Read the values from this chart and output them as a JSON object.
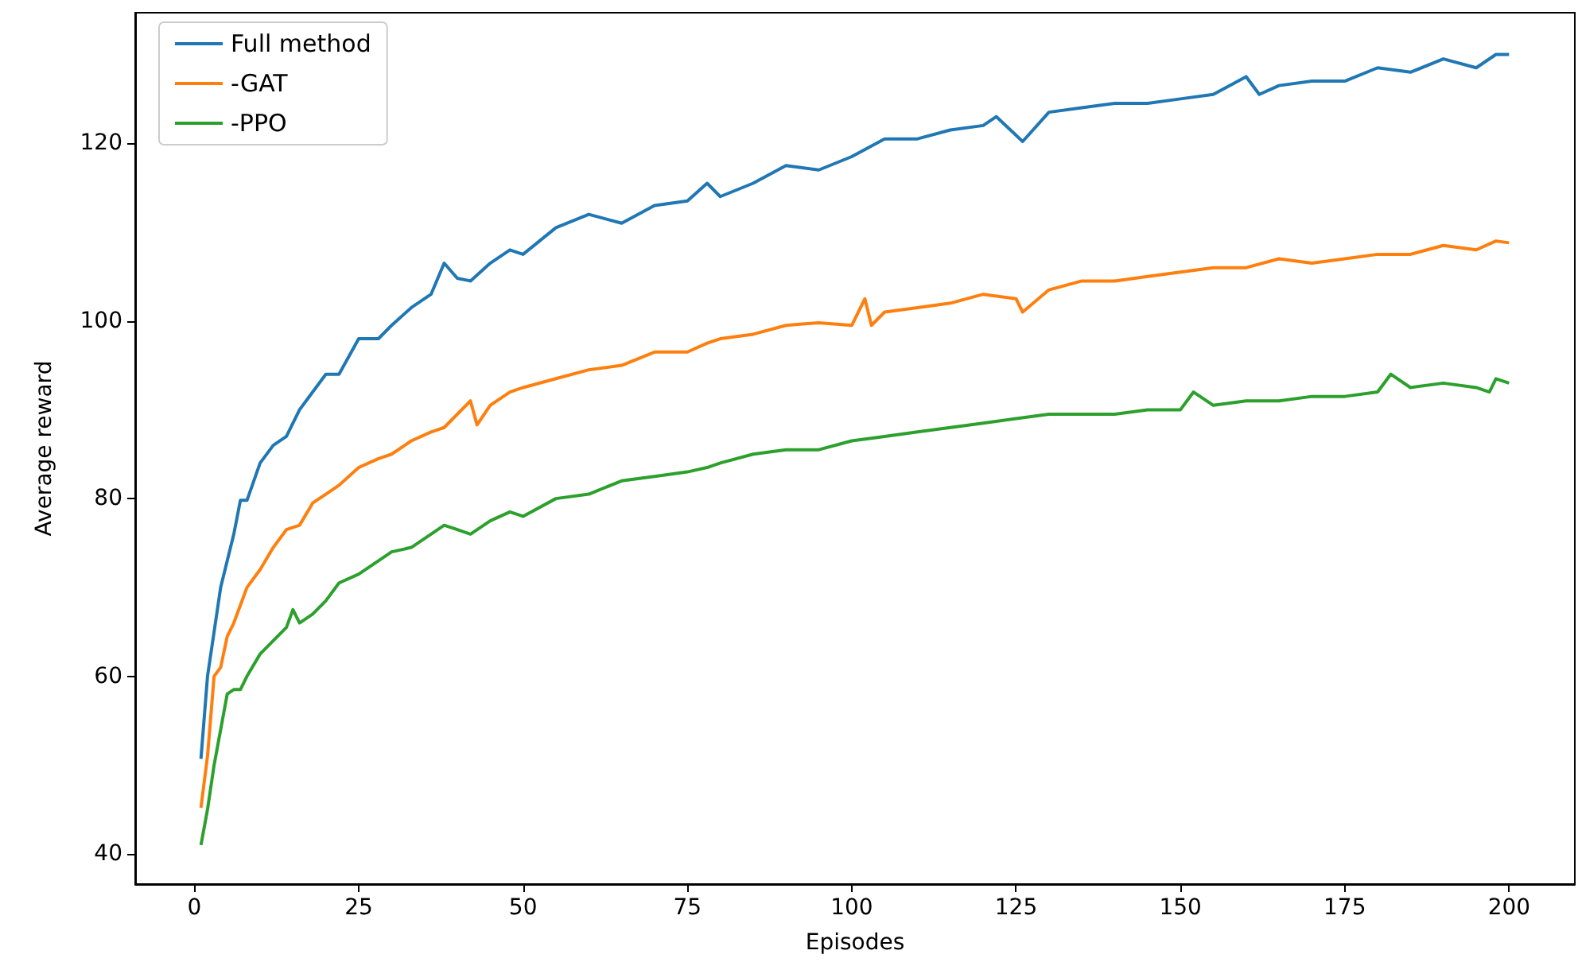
{
  "chart_data": {
    "type": "line",
    "xlabel": "Episodes",
    "ylabel": "Average reward",
    "xlim": [
      -9,
      210
    ],
    "xticks": [
      0,
      25,
      50,
      75,
      100,
      125,
      150,
      175,
      200
    ],
    "ylim": [
      36.6,
      134.7
    ],
    "yticks": [
      40,
      60,
      80,
      100,
      120
    ],
    "grid": false,
    "legend": "top left",
    "marker": "none",
    "line_style": "solid",
    "series": [
      {
        "name": "Full method",
        "color": "#1f77b4",
        "x": [
          1,
          2,
          3,
          4,
          5,
          6,
          7,
          8,
          10,
          12,
          14,
          16,
          18,
          20,
          22,
          25,
          28,
          30,
          33,
          36,
          38,
          40,
          42,
          45,
          48,
          50,
          55,
          60,
          65,
          70,
          75,
          78,
          80,
          85,
          90,
          95,
          100,
          105,
          110,
          115,
          120,
          122,
          126,
          130,
          135,
          140,
          145,
          150,
          155,
          160,
          162,
          165,
          170,
          175,
          180,
          185,
          190,
          195,
          198,
          200
        ],
        "values": [
          50.7,
          60,
          65,
          70,
          73,
          76,
          79.8,
          79.8,
          84,
          86,
          87,
          90,
          92,
          94,
          94,
          98,
          98,
          99.5,
          101.5,
          103,
          106.5,
          104.8,
          104.5,
          106.5,
          108,
          107.5,
          110.5,
          112,
          111,
          113,
          113.5,
          115.5,
          114,
          115.5,
          117.5,
          117,
          118.5,
          120.5,
          120.5,
          121.5,
          122,
          123,
          120.2,
          123.5,
          124,
          124.5,
          124.5,
          125,
          125.5,
          127.5,
          125.5,
          126.5,
          127,
          127,
          128.5,
          128,
          129.5,
          128.5,
          130,
          130
        ]
      },
      {
        "name": "-GAT",
        "color": "#ff7f0e",
        "x": [
          1,
          2,
          3,
          4,
          5,
          6,
          7,
          8,
          10,
          12,
          14,
          16,
          18,
          20,
          22,
          25,
          28,
          30,
          33,
          36,
          38,
          40,
          42,
          43,
          45,
          48,
          50,
          55,
          60,
          65,
          70,
          75,
          78,
          80,
          85,
          90,
          95,
          100,
          102,
          103,
          105,
          110,
          115,
          120,
          125,
          126,
          130,
          135,
          140,
          145,
          150,
          155,
          160,
          165,
          170,
          175,
          180,
          185,
          190,
          195,
          198,
          200
        ],
        "values": [
          45.2,
          51,
          60,
          61,
          64.5,
          66,
          68,
          70,
          72,
          74.5,
          76.5,
          77,
          79.5,
          80.5,
          81.5,
          83.5,
          84.5,
          85,
          86.5,
          87.5,
          88,
          89.5,
          91,
          88.3,
          90.5,
          92,
          92.5,
          93.5,
          94.5,
          95,
          96.5,
          96.5,
          97.5,
          98,
          98.5,
          99.5,
          99.8,
          99.5,
          102.5,
          99.5,
          101,
          101.5,
          102,
          103,
          102.5,
          101,
          103.5,
          104.5,
          104.5,
          105,
          105.5,
          106,
          106,
          107,
          106.5,
          107,
          107.5,
          107.5,
          108.5,
          108,
          109,
          108.8
        ]
      },
      {
        "name": "-PPO",
        "color": "#2ca02c",
        "x": [
          1,
          2,
          3,
          4,
          5,
          6,
          7,
          8,
          10,
          12,
          14,
          15,
          16,
          18,
          20,
          22,
          25,
          28,
          30,
          33,
          36,
          38,
          40,
          42,
          45,
          48,
          50,
          55,
          60,
          65,
          70,
          75,
          78,
          80,
          85,
          90,
          95,
          100,
          105,
          110,
          115,
          120,
          125,
          130,
          135,
          140,
          145,
          150,
          152,
          155,
          160,
          165,
          170,
          175,
          180,
          182,
          185,
          190,
          195,
          197,
          198,
          200
        ],
        "values": [
          41,
          45,
          50,
          54,
          58,
          58.5,
          58.5,
          60,
          62.5,
          64,
          65.5,
          67.5,
          66,
          67,
          68.5,
          70.5,
          71.5,
          73,
          74,
          74.5,
          76,
          77,
          76.5,
          76,
          77.5,
          78.5,
          78,
          80,
          80.5,
          82,
          82.5,
          83,
          83.5,
          84,
          85,
          85.5,
          85.5,
          86.5,
          87,
          87.5,
          88,
          88.5,
          89,
          89.5,
          89.5,
          89.5,
          90,
          90,
          92,
          90.5,
          91,
          91,
          91.5,
          91.5,
          92,
          94,
          92.5,
          93,
          92.5,
          92,
          93.5,
          93
        ]
      }
    ]
  }
}
